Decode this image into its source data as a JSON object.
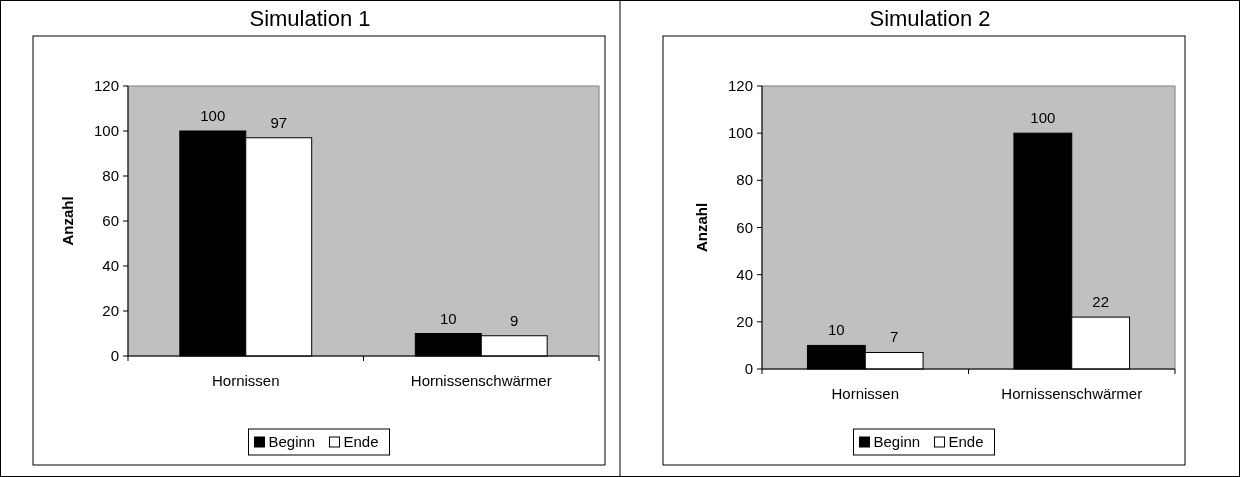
{
  "chart_data": [
    {
      "type": "bar",
      "title": "Simulation 1",
      "ylabel": "Anzahl",
      "categories": [
        "Hornissen",
        "Hornissenschwärmer"
      ],
      "series": [
        {
          "name": "Beginn",
          "color": "#000000",
          "values": [
            100,
            10
          ]
        },
        {
          "name": "Ende",
          "color": "#ffffff",
          "values": [
            97,
            9
          ]
        }
      ],
      "ylim": [
        0,
        120
      ],
      "yticks": [
        0,
        20,
        40,
        60,
        80,
        100,
        120
      ],
      "data_labels": true,
      "legend": "bottom",
      "grid": false
    },
    {
      "type": "bar",
      "title": "Simulation 2",
      "ylabel": "Anzahl",
      "categories": [
        "Hornissen",
        "Hornissenschwärmer"
      ],
      "series": [
        {
          "name": "Beginn",
          "color": "#000000",
          "values": [
            10,
            100
          ]
        },
        {
          "name": "Ende",
          "color": "#ffffff",
          "values": [
            7,
            22
          ]
        }
      ],
      "ylim": [
        0,
        120
      ],
      "yticks": [
        0,
        20,
        40,
        60,
        80,
        100,
        120
      ],
      "data_labels": true,
      "legend": "bottom",
      "grid": false
    }
  ]
}
